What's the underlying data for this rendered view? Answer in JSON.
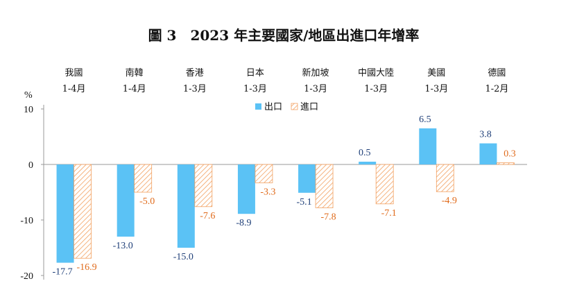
{
  "chart_data": {
    "type": "bar",
    "title": "圖 3　2023 年主要國家/地區出進口年增率",
    "unit": "%",
    "categories": [
      {
        "name": "我國",
        "period": "1-4月"
      },
      {
        "name": "南韓",
        "period": "1-4月"
      },
      {
        "name": "香港",
        "period": "1-3月"
      },
      {
        "name": "日本",
        "period": "1-3月"
      },
      {
        "name": "新加坡",
        "period": "1-3月"
      },
      {
        "name": "中國大陸",
        "period": "1-3月"
      },
      {
        "name": "美國",
        "period": "1-3月"
      },
      {
        "name": "德國",
        "period": "1-2月"
      }
    ],
    "series": [
      {
        "name": "出口",
        "values": [
          -17.7,
          -13.0,
          -15.0,
          -8.9,
          -5.1,
          0.5,
          6.5,
          3.8
        ],
        "color": "#5bc2f5"
      },
      {
        "name": "進口",
        "values": [
          -16.9,
          -5.0,
          -7.6,
          -3.3,
          -7.8,
          -7.1,
          -4.9,
          0.3
        ],
        "color": "#f2a060",
        "pattern": "hatched"
      }
    ],
    "ylim": [
      -20,
      10
    ],
    "yticks": [
      10,
      0,
      -10,
      -20
    ],
    "legend_position": "top-center",
    "grid": false
  }
}
